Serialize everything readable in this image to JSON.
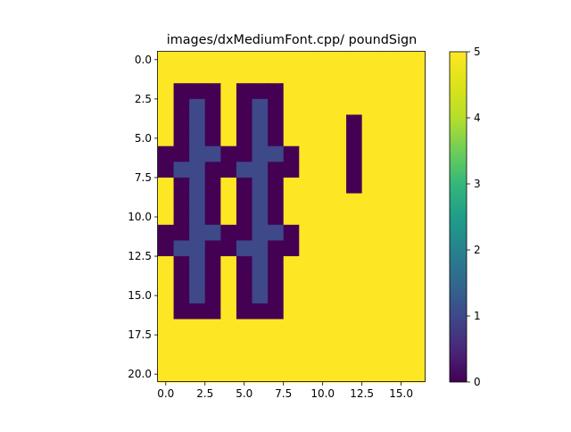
{
  "chart_data": {
    "type": "heatmap",
    "title": "images/dxMediumFont.cpp/ poundSign",
    "xlabel": "",
    "ylabel": "",
    "cols": 17,
    "rows": 21,
    "colormap": "viridis",
    "value_range": [
      0,
      5
    ],
    "xticks": [
      0.0,
      2.5,
      5.0,
      7.5,
      10.0,
      12.5,
      15.0
    ],
    "xtick_labels": [
      "0.0",
      "2.5",
      "5.0",
      "7.5",
      "10.0",
      "12.5",
      "15.0"
    ],
    "yticks": [
      0.0,
      2.5,
      5.0,
      7.5,
      10.0,
      12.5,
      15.0,
      17.5,
      20.0
    ],
    "ytick_labels": [
      "0.0",
      "2.5",
      "5.0",
      "7.5",
      "10.0",
      "12.5",
      "15.0",
      "17.5",
      "20.0"
    ],
    "colorbar_ticks": [
      0,
      1,
      2,
      3,
      4,
      5
    ],
    "colorbar_labels": [
      "0",
      "1",
      "2",
      "3",
      "4",
      "5"
    ],
    "grid": [
      [
        5,
        5,
        5,
        5,
        5,
        5,
        5,
        5,
        5,
        5,
        5,
        5,
        5,
        5,
        5,
        5,
        5
      ],
      [
        5,
        5,
        5,
        5,
        5,
        5,
        5,
        5,
        5,
        5,
        5,
        5,
        5,
        5,
        5,
        5,
        5
      ],
      [
        5,
        0,
        0,
        0,
        5,
        0,
        0,
        0,
        5,
        5,
        5,
        5,
        5,
        5,
        5,
        5,
        5
      ],
      [
        5,
        0,
        1,
        0,
        5,
        0,
        1,
        0,
        5,
        5,
        5,
        5,
        5,
        5,
        5,
        5,
        5
      ],
      [
        5,
        0,
        1,
        0,
        5,
        0,
        1,
        0,
        5,
        5,
        5,
        5,
        0,
        5,
        5,
        5,
        5
      ],
      [
        5,
        0,
        1,
        0,
        5,
        0,
        1,
        0,
        5,
        5,
        5,
        5,
        0,
        5,
        5,
        5,
        5
      ],
      [
        0,
        0,
        1,
        1,
        0,
        0,
        1,
        1,
        0,
        5,
        5,
        5,
        0,
        5,
        5,
        5,
        5
      ],
      [
        0,
        1,
        1,
        0,
        0,
        1,
        1,
        0,
        0,
        5,
        5,
        5,
        0,
        5,
        5,
        5,
        5
      ],
      [
        5,
        0,
        1,
        0,
        5,
        0,
        1,
        0,
        5,
        5,
        5,
        5,
        0,
        5,
        5,
        5,
        5
      ],
      [
        5,
        0,
        1,
        0,
        5,
        0,
        1,
        0,
        5,
        5,
        5,
        5,
        5,
        5,
        5,
        5,
        5
      ],
      [
        5,
        0,
        1,
        0,
        5,
        0,
        1,
        0,
        5,
        5,
        5,
        5,
        5,
        5,
        5,
        5,
        5
      ],
      [
        0,
        0,
        1,
        1,
        0,
        0,
        1,
        1,
        0,
        5,
        5,
        5,
        5,
        5,
        5,
        5,
        5
      ],
      [
        0,
        1,
        1,
        0,
        0,
        1,
        1,
        0,
        0,
        5,
        5,
        5,
        5,
        5,
        5,
        5,
        5
      ],
      [
        5,
        0,
        1,
        0,
        5,
        0,
        1,
        0,
        5,
        5,
        5,
        5,
        5,
        5,
        5,
        5,
        5
      ],
      [
        5,
        0,
        1,
        0,
        5,
        0,
        1,
        0,
        5,
        5,
        5,
        5,
        5,
        5,
        5,
        5,
        5
      ],
      [
        5,
        0,
        1,
        0,
        5,
        0,
        1,
        0,
        5,
        5,
        5,
        5,
        5,
        5,
        5,
        5,
        5
      ],
      [
        5,
        0,
        0,
        0,
        5,
        0,
        0,
        0,
        5,
        5,
        5,
        5,
        5,
        5,
        5,
        5,
        5
      ],
      [
        5,
        5,
        5,
        5,
        5,
        5,
        5,
        5,
        5,
        5,
        5,
        5,
        5,
        5,
        5,
        5,
        5
      ],
      [
        5,
        5,
        5,
        5,
        5,
        5,
        5,
        5,
        5,
        5,
        5,
        5,
        5,
        5,
        5,
        5,
        5
      ],
      [
        5,
        5,
        5,
        5,
        5,
        5,
        5,
        5,
        5,
        5,
        5,
        5,
        5,
        5,
        5,
        5,
        5
      ],
      [
        5,
        5,
        5,
        5,
        5,
        5,
        5,
        5,
        5,
        5,
        5,
        5,
        5,
        5,
        5,
        5,
        5
      ]
    ]
  }
}
